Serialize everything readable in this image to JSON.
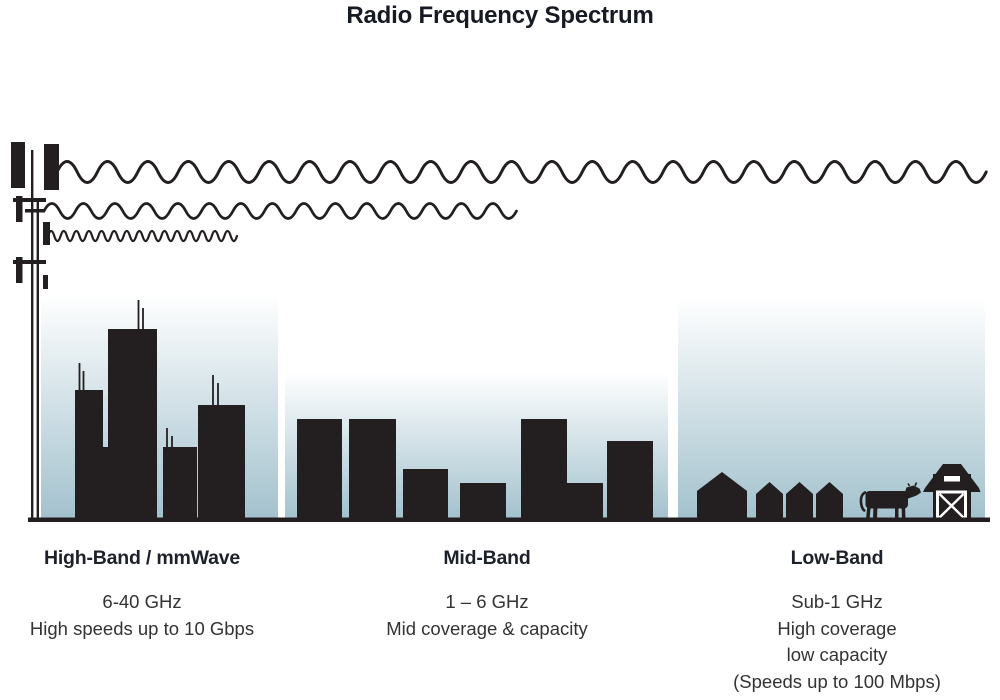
{
  "title": "Radio Frequency Spectrum",
  "bands": [
    {
      "id": "high-band",
      "name": "High-Band / mmWave",
      "frequency": "6-40 GHz",
      "details": [
        "High speeds up to 10 Gbps"
      ],
      "scene_icon": "city-skyline-icon",
      "wave_icon": "high-band-wave-icon (shortest wavelength, shortest reach)"
    },
    {
      "id": "mid-band",
      "name": "Mid-Band",
      "frequency": "1 – 6 GHz",
      "details": [
        "Mid coverage & capacity"
      ],
      "scene_icon": "midrise-buildings-icon",
      "wave_icon": "mid-band-wave-icon (medium wavelength, medium reach)"
    },
    {
      "id": "low-band",
      "name": "Low-Band",
      "frequency": "Sub-1 GHz",
      "details": [
        "High coverage",
        "low capacity",
        "(Speeds up to 100 Mbps)"
      ],
      "scene_icon": "suburb-houses-icon, cow-icon, barn-icon",
      "wave_icon": "low-band-wave-icon (longest wavelength, longest reach)"
    }
  ],
  "colors": {
    "ink": "#231f20",
    "sky_gradient_top": "#ffffff",
    "sky_gradient_bottom": "#a2c1cd",
    "title_text": "#151a23",
    "body_text": "#333333"
  }
}
